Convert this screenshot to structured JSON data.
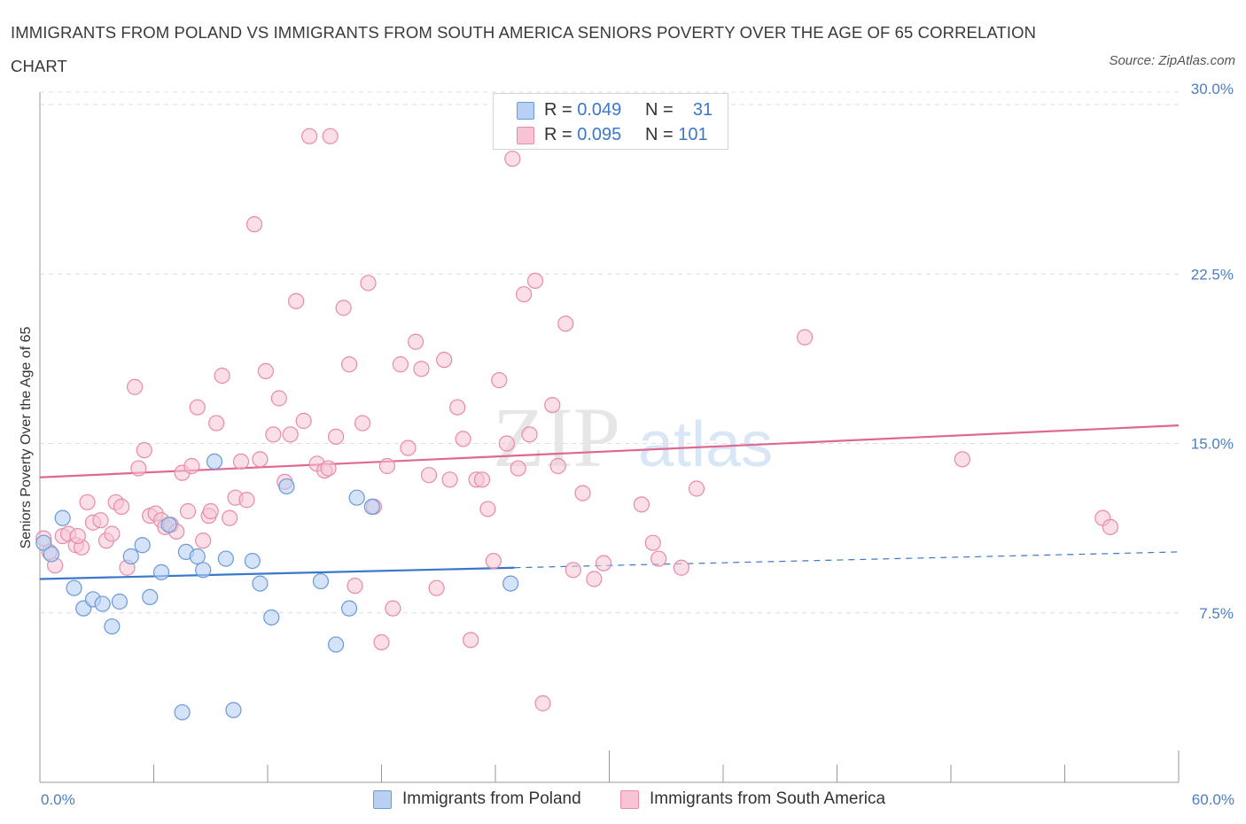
{
  "header": {
    "title": "IMMIGRANTS FROM POLAND VS IMMIGRANTS FROM SOUTH AMERICA SENIORS POVERTY OVER THE AGE OF 65 CORRELATION CHART",
    "source": "Source: ZipAtlas.com"
  },
  "legend": {
    "rows": [
      {
        "r_label": "R = ",
        "r_value": "0.049",
        "n_label": "N = ",
        "n_value": "31"
      },
      {
        "r_label": "R = ",
        "r_value": "0.095",
        "n_label": "N = ",
        "n_value": "101"
      }
    ]
  },
  "watermark": {
    "zip": "ZIP",
    "atlas": "atlas"
  },
  "colors": {
    "poland_fill": "#b8d0f4",
    "poland_stroke": "#6a9ad8",
    "poland_line": "#3a78c9",
    "sa_fill": "#f8c4d4",
    "sa_stroke": "#e88aa8",
    "sa_line": "#e06890",
    "tick_label": "#4a7fc1",
    "grid": "#dcdcdc"
  },
  "chart_data": {
    "type": "scatter",
    "xlabel": "",
    "ylabel": "Seniors Poverty Over the Age of 65",
    "xlim": [
      0,
      60
    ],
    "ylim": [
      0,
      30
    ],
    "x_tick_labels": [
      "0.0%",
      "60.0%"
    ],
    "y_ticks": [
      7.5,
      15,
      22.5,
      30
    ],
    "y_tick_labels": [
      "7.5%",
      "15.0%",
      "22.5%",
      "30.0%"
    ],
    "grid": "horizontal dashed",
    "legend_placement": "bottom",
    "series": [
      {
        "name": "Immigrants from Poland",
        "R": 0.049,
        "N": 31,
        "trend": {
          "x": [
            0,
            25
          ],
          "y": [
            9.0,
            9.5
          ],
          "dashed_to": [
            60,
            10.2
          ]
        },
        "points": [
          [
            0.2,
            10.6
          ],
          [
            0.6,
            10.1
          ],
          [
            1.2,
            11.7
          ],
          [
            1.8,
            8.6
          ],
          [
            2.3,
            7.7
          ],
          [
            2.8,
            8.1
          ],
          [
            3.3,
            7.9
          ],
          [
            3.8,
            6.9
          ],
          [
            4.2,
            8.0
          ],
          [
            4.8,
            10.0
          ],
          [
            5.4,
            10.5
          ],
          [
            5.8,
            8.2
          ],
          [
            6.4,
            9.3
          ],
          [
            6.8,
            11.4
          ],
          [
            7.5,
            3.1
          ],
          [
            7.7,
            10.2
          ],
          [
            8.3,
            10.0
          ],
          [
            8.6,
            9.4
          ],
          [
            9.2,
            14.2
          ],
          [
            9.8,
            9.9
          ],
          [
            10.2,
            3.2
          ],
          [
            11.2,
            9.8
          ],
          [
            11.6,
            8.8
          ],
          [
            12.2,
            7.3
          ],
          [
            13.0,
            13.1
          ],
          [
            14.8,
            8.9
          ],
          [
            15.6,
            6.1
          ],
          [
            16.3,
            7.7
          ],
          [
            16.7,
            12.6
          ],
          [
            17.5,
            12.2
          ],
          [
            24.8,
            8.8
          ]
        ]
      },
      {
        "name": "Immigrants from South America",
        "R": 0.095,
        "N": 101,
        "trend": {
          "x": [
            0,
            60
          ],
          "y": [
            13.5,
            15.8
          ]
        },
        "points": [
          [
            0.2,
            10.8
          ],
          [
            0.5,
            10.2
          ],
          [
            0.8,
            9.6
          ],
          [
            1.2,
            10.9
          ],
          [
            1.5,
            11.0
          ],
          [
            1.9,
            10.5
          ],
          [
            2.2,
            10.4
          ],
          [
            2.5,
            12.4
          ],
          [
            2.8,
            11.5
          ],
          [
            3.2,
            11.6
          ],
          [
            3.5,
            10.7
          ],
          [
            3.8,
            11.0
          ],
          [
            4.0,
            12.4
          ],
          [
            4.3,
            12.2
          ],
          [
            4.6,
            9.5
          ],
          [
            5.0,
            17.5
          ],
          [
            5.2,
            13.9
          ],
          [
            5.5,
            14.7
          ],
          [
            5.8,
            11.8
          ],
          [
            6.1,
            11.9
          ],
          [
            6.4,
            11.6
          ],
          [
            6.6,
            11.3
          ],
          [
            6.9,
            11.4
          ],
          [
            7.2,
            11.1
          ],
          [
            7.5,
            13.7
          ],
          [
            7.8,
            12.0
          ],
          [
            8.0,
            14.0
          ],
          [
            8.3,
            16.6
          ],
          [
            8.6,
            10.7
          ],
          [
            8.9,
            11.8
          ],
          [
            9.3,
            15.9
          ],
          [
            9.6,
            18.0
          ],
          [
            10.0,
            11.7
          ],
          [
            10.3,
            12.6
          ],
          [
            10.6,
            14.2
          ],
          [
            10.9,
            12.5
          ],
          [
            11.3,
            24.7
          ],
          [
            11.6,
            14.3
          ],
          [
            11.9,
            18.2
          ],
          [
            12.3,
            15.4
          ],
          [
            12.6,
            17.0
          ],
          [
            12.9,
            13.3
          ],
          [
            13.2,
            15.4
          ],
          [
            13.5,
            21.3
          ],
          [
            13.9,
            16.0
          ],
          [
            14.2,
            28.6
          ],
          [
            14.6,
            14.1
          ],
          [
            15.0,
            13.8
          ],
          [
            15.3,
            28.6
          ],
          [
            15.6,
            15.3
          ],
          [
            16.0,
            21.0
          ],
          [
            16.3,
            18.5
          ],
          [
            16.6,
            8.7
          ],
          [
            17.0,
            15.9
          ],
          [
            17.3,
            22.1
          ],
          [
            17.6,
            12.2
          ],
          [
            18.0,
            6.2
          ],
          [
            18.3,
            14.0
          ],
          [
            18.6,
            7.7
          ],
          [
            19.0,
            18.5
          ],
          [
            19.4,
            14.8
          ],
          [
            19.8,
            19.5
          ],
          [
            20.1,
            18.3
          ],
          [
            20.5,
            13.6
          ],
          [
            20.9,
            8.6
          ],
          [
            21.3,
            18.7
          ],
          [
            21.6,
            13.4
          ],
          [
            22.0,
            16.6
          ],
          [
            22.3,
            15.2
          ],
          [
            22.7,
            6.3
          ],
          [
            23.0,
            13.4
          ],
          [
            23.3,
            13.4
          ],
          [
            23.6,
            12.1
          ],
          [
            23.9,
            9.8
          ],
          [
            24.2,
            17.8
          ],
          [
            24.6,
            15.0
          ],
          [
            24.9,
            27.6
          ],
          [
            25.2,
            13.9
          ],
          [
            25.5,
            21.6
          ],
          [
            25.8,
            15.4
          ],
          [
            26.1,
            22.2
          ],
          [
            26.5,
            3.5
          ],
          [
            27.0,
            16.7
          ],
          [
            27.3,
            14.0
          ],
          [
            27.7,
            20.3
          ],
          [
            28.1,
            9.4
          ],
          [
            28.6,
            12.8
          ],
          [
            29.2,
            9.0
          ],
          [
            29.7,
            9.7
          ],
          [
            31.7,
            12.3
          ],
          [
            32.3,
            10.6
          ],
          [
            32.6,
            9.9
          ],
          [
            33.8,
            9.5
          ],
          [
            34.6,
            13.0
          ],
          [
            40.3,
            19.7
          ],
          [
            48.6,
            14.3
          ],
          [
            56.0,
            11.7
          ],
          [
            56.4,
            11.3
          ],
          [
            2.0,
            10.9
          ],
          [
            15.2,
            13.9
          ],
          [
            9.0,
            12.0
          ]
        ]
      }
    ]
  }
}
